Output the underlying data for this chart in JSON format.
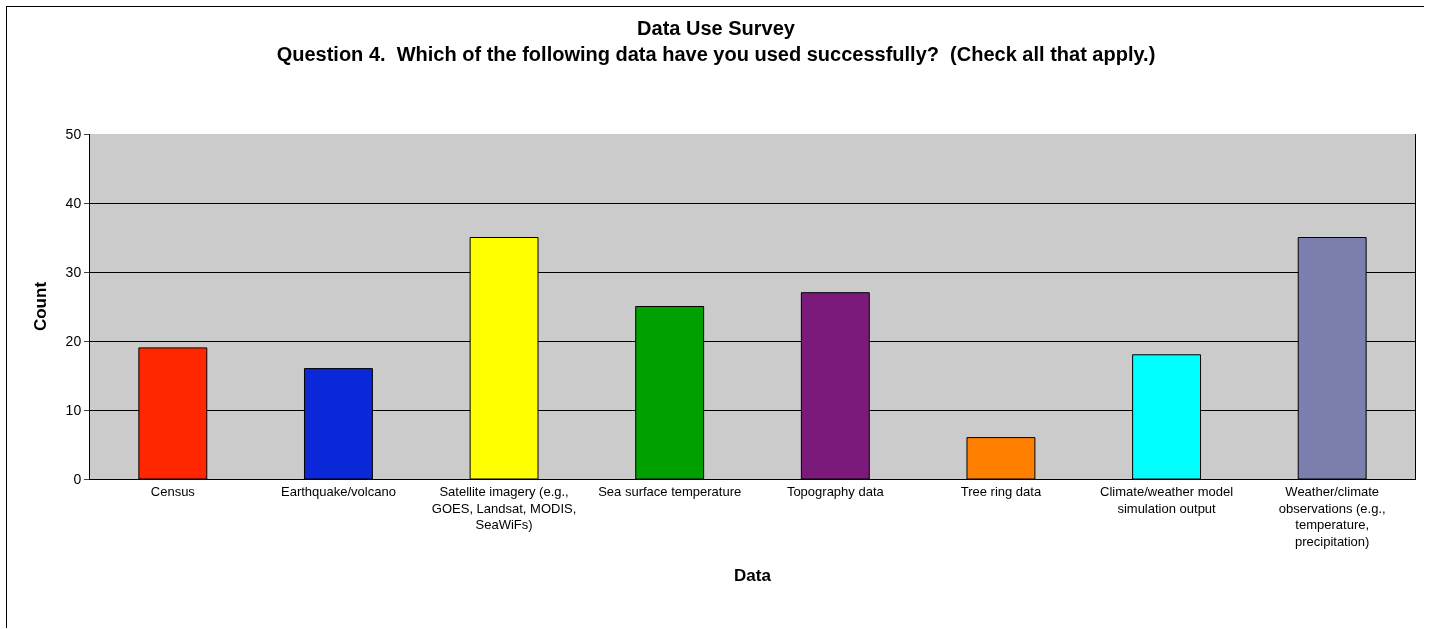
{
  "chart_data": {
    "type": "bar",
    "title": "Data Use Survey",
    "subtitle": "Question 4.  Which of the following data have you used successfully?  (Check all that apply.)",
    "xlabel": "Data",
    "ylabel": "Count",
    "categories": [
      "Census",
      "Earthquake/volcano",
      "Satellite imagery (e.g., GOES, Landsat, MODIS, SeaWiFs)",
      "Sea surface temperature",
      "Topography data",
      "Tree ring data",
      "Climate/weather model simulation output",
      "Weather/climate observations (e.g., temperature, precipitation)"
    ],
    "values": [
      19,
      16,
      35,
      25,
      27,
      6,
      18,
      35
    ],
    "colors": [
      "#ff2600",
      "#0a28d8",
      "#ffff00",
      "#00a000",
      "#7b1a7b",
      "#ff7f00",
      "#00ffff",
      "#7b7fae"
    ],
    "ylim": [
      0,
      50
    ],
    "yticks": [
      0,
      10,
      20,
      30,
      40,
      50
    ],
    "grid": "y"
  }
}
